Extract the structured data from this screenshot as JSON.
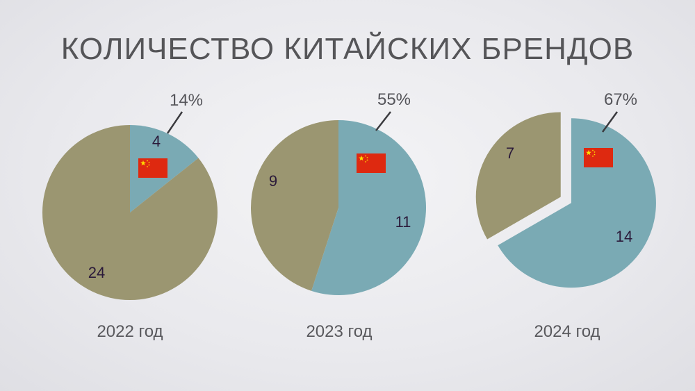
{
  "title": "КОЛИЧЕСТВО КИТАЙСКИХ БРЕНДОВ",
  "colors": {
    "chinese": "#7aaab4",
    "other": "#9b9671",
    "flag_red": "#de2910",
    "flag_star": "#ffde00",
    "value_text": "#2b1a3a",
    "pct_text": "#55555a"
  },
  "icons": {
    "flag": "china-flag-icon"
  },
  "chart_data": [
    {
      "type": "pie",
      "label": "2022 год",
      "slices": [
        {
          "name": "chinese",
          "value": 4
        },
        {
          "name": "other",
          "value": 24
        }
      ],
      "percent_label": "14%"
    },
    {
      "type": "pie",
      "label": "2023 год",
      "slices": [
        {
          "name": "chinese",
          "value": 11
        },
        {
          "name": "other",
          "value": 9
        }
      ],
      "percent_label": "55%"
    },
    {
      "type": "pie",
      "label": "2024 год",
      "slices": [
        {
          "name": "chinese",
          "value": 14
        },
        {
          "name": "other",
          "value": 7
        }
      ],
      "percent_label": "67%",
      "exploded": true
    }
  ]
}
